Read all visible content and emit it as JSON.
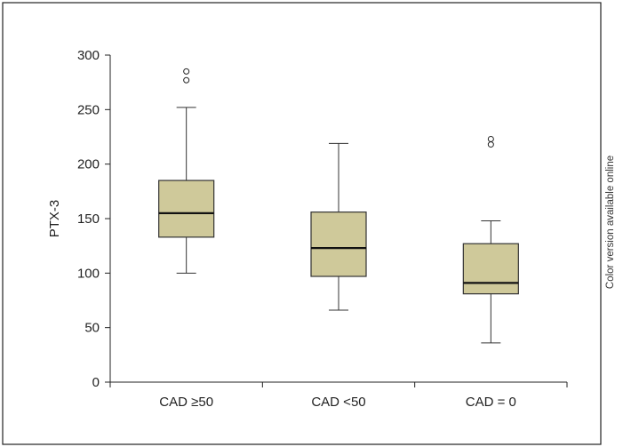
{
  "chart_data": {
    "type": "boxplot",
    "ylabel": "PTX-3",
    "xlabel": "",
    "ylim": [
      0,
      300
    ],
    "yticks": [
      0,
      50,
      100,
      150,
      200,
      250,
      300
    ],
    "grid": false,
    "categories": [
      "CAD ≥50",
      "CAD <50",
      "CAD = 0"
    ],
    "boxes": [
      {
        "category": "CAD ≥50",
        "whisker_low": 100,
        "q1": 133,
        "median": 155,
        "q3": 185,
        "whisker_high": 252,
        "outliers": [
          277,
          285
        ]
      },
      {
        "category": "CAD <50",
        "whisker_low": 66,
        "q1": 97,
        "median": 123,
        "q3": 156,
        "whisker_high": 219,
        "outliers": []
      },
      {
        "category": "CAD = 0",
        "whisker_low": 36,
        "q1": 81,
        "median": 91,
        "q3": 127,
        "whisker_high": 148,
        "outliers": [
          218,
          223
        ]
      }
    ],
    "box_fill": "#cfc99a",
    "box_stroke": "#333333"
  },
  "side_note": "Color version available online"
}
